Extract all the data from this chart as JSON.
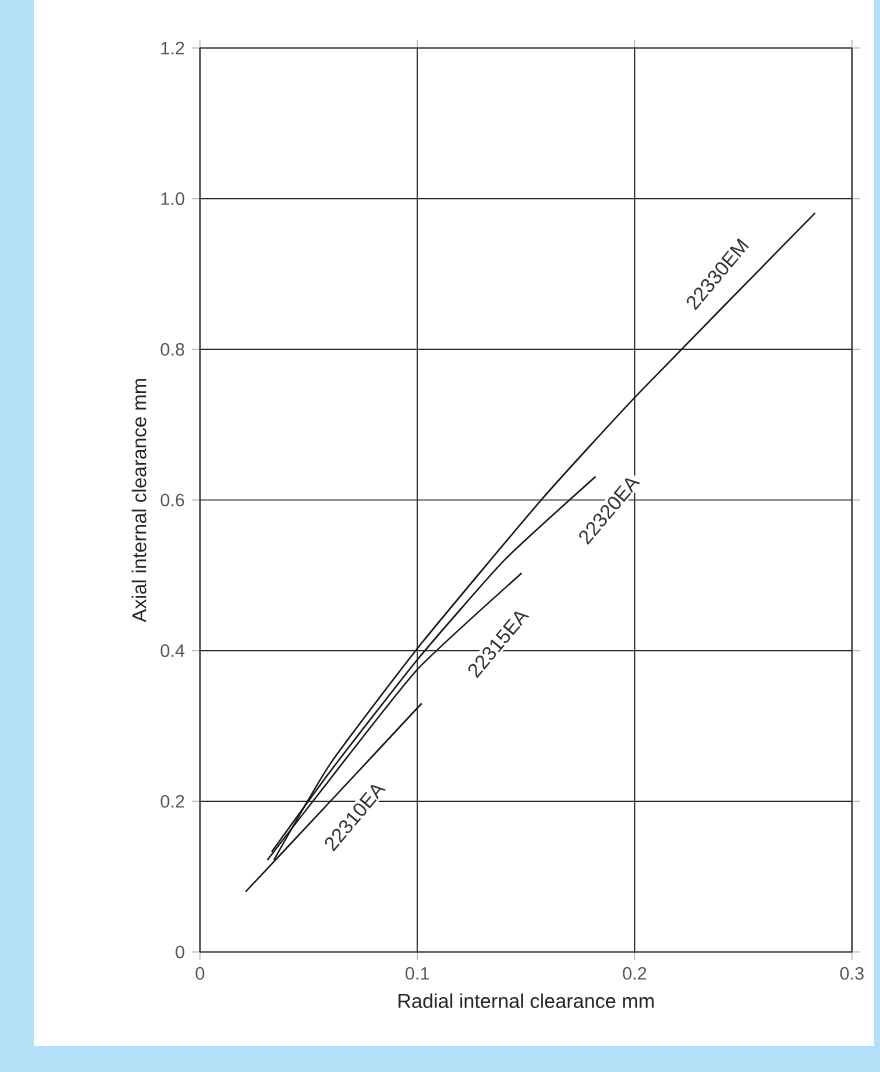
{
  "chart_data": {
    "type": "line",
    "xlabel": "Radial internal clearance   mm",
    "ylabel": "Axial internal clearance   mm",
    "xlim": [
      0,
      0.3
    ],
    "ylim": [
      0,
      1.2
    ],
    "xticks": [
      0,
      0.1,
      0.2,
      0.3
    ],
    "yticks": [
      0,
      0.2,
      0.4,
      0.6,
      0.8,
      {
        "value": 1.0,
        "label": "1.0"
      },
      1.2
    ],
    "grid": true,
    "line_style": "solid",
    "series": [
      {
        "color": "#1a1a1a",
        "x": [
          0.021,
          0.06,
          0.102
        ],
        "values": [
          0.08,
          0.2,
          0.33
        ]
      },
      {
        "color": "#1a1a1a",
        "x": [
          0.031,
          0.06,
          0.1,
          0.148
        ],
        "values": [
          0.122,
          0.23,
          0.375,
          0.503
        ]
      },
      {
        "color": "#1a1a1a",
        "x": [
          0.033,
          0.06,
          0.1,
          0.14,
          0.182
        ],
        "values": [
          0.133,
          0.24,
          0.388,
          0.52,
          0.631
        ]
      },
      {
        "color": "#1a1a1a",
        "x": [
          0.034,
          0.06,
          0.102,
          0.157,
          0.202,
          0.283
        ],
        "values": [
          0.122,
          0.25,
          0.41,
          0.6,
          0.742,
          0.981
        ]
      }
    ],
    "annotations": [
      {
        "text": "22310EA",
        "x": 0.071,
        "y": 0.18
      },
      {
        "text": "22315EA",
        "x": 0.137,
        "y": 0.41
      },
      {
        "text": "22320EA",
        "x": 0.188,
        "y": 0.587
      },
      {
        "text": "22330EM",
        "x": 0.238,
        "y": 0.9
      }
    ]
  }
}
